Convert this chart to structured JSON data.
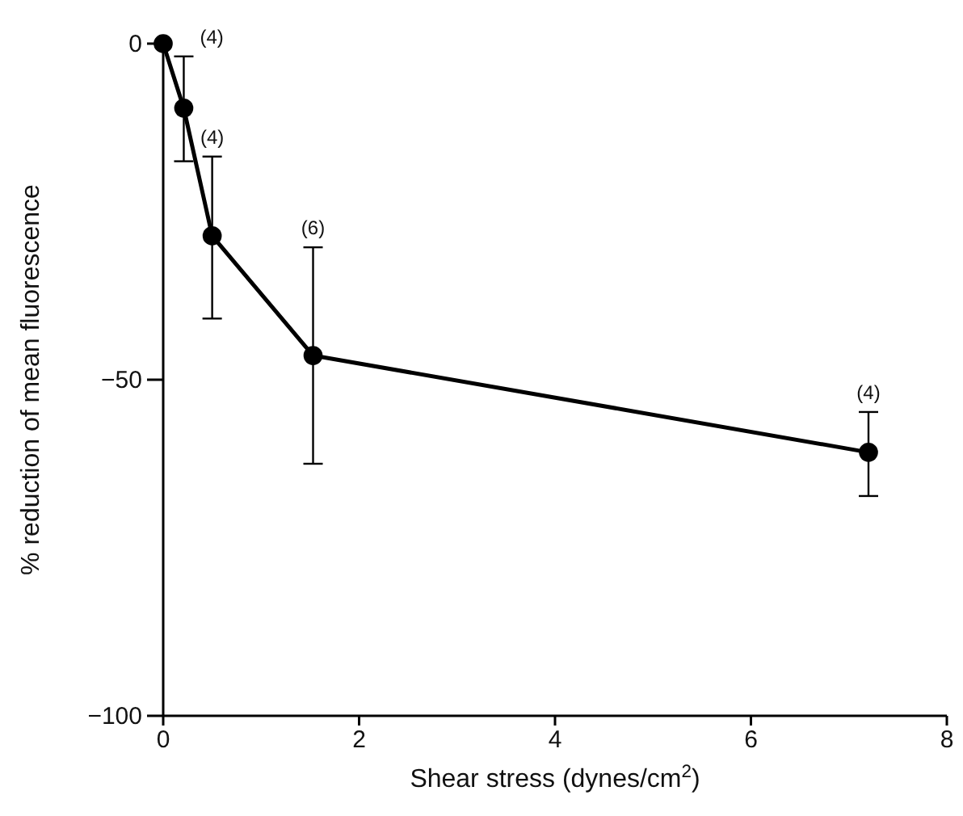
{
  "chart_data": {
    "type": "line",
    "xlabel": "Shear stress (dynes/cm$^{2}$)",
    "ylabel": "% reduction of mean fluorescence",
    "x": [
      0,
      0.21,
      0.5,
      1.53,
      7.2
    ],
    "series": [
      {
        "color": "#000000",
        "values": [
          0,
          -9.6,
          -28.6,
          -46.4,
          -60.8
        ],
        "errors": [
          null,
          [
            -17.5,
            -1.9
          ],
          [
            -40.9,
            -16.8
          ],
          [
            -62.5,
            -30.3
          ],
          [
            -67.3,
            -54.8
          ]
        ]
      }
    ],
    "xlim": [
      0,
      8
    ],
    "xticks": [
      0,
      2,
      4,
      6,
      8
    ],
    "ylim": [
      -100,
      0
    ],
    "yticks": [
      0,
      -50,
      -100
    ],
    "marker": "circle",
    "line_style": "solid",
    "grid": false,
    "annotations": [
      {
        "text": "(4)",
        "x": 0.21,
        "y": -1.9
      },
      {
        "text": "(4)",
        "x": 0.5,
        "y": -16.8
      },
      {
        "text": "(6)",
        "x": 1.53,
        "y": -30.3
      },
      {
        "text": "(4)",
        "x": 7.2,
        "y": -54.8
      }
    ]
  }
}
